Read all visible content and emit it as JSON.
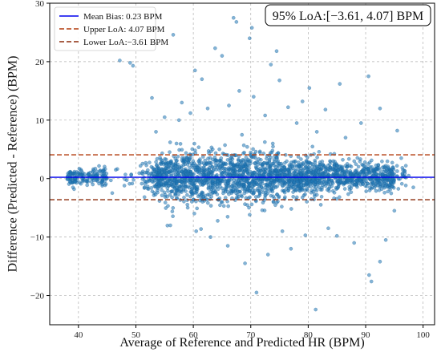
{
  "chart_data": {
    "type": "scatter",
    "title": "",
    "xlabel": "Average of Reference and Predicted HR (BPM)",
    "ylabel": "Difference (Predicted - Reference) (BPM)",
    "xlim": [
      35,
      102
    ],
    "ylim": [
      -25,
      30
    ],
    "xticks": [
      40,
      50,
      60,
      70,
      80,
      90,
      100
    ],
    "yticks": [
      -20,
      -10,
      0,
      10,
      20,
      30
    ],
    "grid": true,
    "legend_position": "upper-left",
    "annotation": "95% LoA:[−3.61, 4.07] BPM",
    "reference_lines": [
      {
        "name": "Mean Bias: 0.23 BPM",
        "value": 0.23,
        "style": "solid",
        "color": "#0000ee"
      },
      {
        "name": "Upper LoA: 4.07 BPM",
        "value": 4.07,
        "style": "dashed",
        "color": "#b23a0c"
      },
      {
        "name": "Lower LoA:−3.61 BPM",
        "value": -3.61,
        "style": "dashed",
        "color": "#8b2a0a"
      }
    ],
    "point_color": "#1f77b4",
    "outlier_points": [
      {
        "x": 67.0,
        "y": 27.5
      },
      {
        "x": 67.5,
        "y": 26.8
      },
      {
        "x": 70.2,
        "y": 25.8
      },
      {
        "x": 56.5,
        "y": 24.6
      },
      {
        "x": 69.8,
        "y": 24.0
      },
      {
        "x": 47.2,
        "y": 20.2
      },
      {
        "x": 49.0,
        "y": 19.8
      },
      {
        "x": 49.5,
        "y": 19.3
      },
      {
        "x": 63.8,
        "y": 22.3
      },
      {
        "x": 65.0,
        "y": 21.0
      },
      {
        "x": 73.5,
        "y": 19.5
      },
      {
        "x": 74.5,
        "y": 21.8
      },
      {
        "x": 60.3,
        "y": 18.5
      },
      {
        "x": 61.5,
        "y": 17.0
      },
      {
        "x": 75.0,
        "y": 16.8
      },
      {
        "x": 80.2,
        "y": 15.5
      },
      {
        "x": 85.5,
        "y": 16.2
      },
      {
        "x": 90.5,
        "y": 17.5
      },
      {
        "x": 79.0,
        "y": 13.2
      },
      {
        "x": 83.0,
        "y": 11.8
      },
      {
        "x": 89.2,
        "y": 9.5
      },
      {
        "x": 52.8,
        "y": 13.8
      },
      {
        "x": 58.0,
        "y": 13.0
      },
      {
        "x": 55.0,
        "y": 10.5
      },
      {
        "x": 92.5,
        "y": 12.0
      },
      {
        "x": 95.5,
        "y": 8.2
      },
      {
        "x": 96.2,
        "y": 3.5
      },
      {
        "x": 97.0,
        "y": 2.2
      },
      {
        "x": 98.3,
        "y": -1.5
      },
      {
        "x": 97.5,
        "y": 0.5
      },
      {
        "x": 53.5,
        "y": 8.0
      },
      {
        "x": 57.5,
        "y": 10.0
      },
      {
        "x": 62.5,
        "y": 12.0
      },
      {
        "x": 59.5,
        "y": 11.2
      },
      {
        "x": 68.0,
        "y": 15.0
      },
      {
        "x": 66.2,
        "y": 12.5
      },
      {
        "x": 70.5,
        "y": 14.0
      },
      {
        "x": 72.5,
        "y": 10.8
      },
      {
        "x": 76.5,
        "y": 12.2
      },
      {
        "x": 78.0,
        "y": 9.5
      },
      {
        "x": 81.5,
        "y": 8.0
      },
      {
        "x": 86.5,
        "y": 7.0
      },
      {
        "x": 69.0,
        "y": -14.5
      },
      {
        "x": 71.0,
        "y": -19.5
      },
      {
        "x": 81.3,
        "y": -22.4
      },
      {
        "x": 90.6,
        "y": -16.5
      },
      {
        "x": 91.0,
        "y": -17.6
      },
      {
        "x": 92.5,
        "y": -14.2
      },
      {
        "x": 73.0,
        "y": -13.0
      },
      {
        "x": 77.0,
        "y": -12.0
      },
      {
        "x": 85.0,
        "y": -9.8
      },
      {
        "x": 88.0,
        "y": -11.0
      },
      {
        "x": 93.5,
        "y": -10.5
      },
      {
        "x": 66.0,
        "y": -11.5
      },
      {
        "x": 60.5,
        "y": -9.0
      },
      {
        "x": 56.0,
        "y": -8.0
      },
      {
        "x": 63.0,
        "y": -10.0
      },
      {
        "x": 75.5,
        "y": -9.0
      },
      {
        "x": 79.5,
        "y": -9.7
      },
      {
        "x": 83.5,
        "y": -8.5
      },
      {
        "x": 95.0,
        "y": -5.5
      },
      {
        "x": 38.5,
        "y": -0.5
      },
      {
        "x": 40.0,
        "y": 1.0
      },
      {
        "x": 42.5,
        "y": -1.0
      },
      {
        "x": 44.5,
        "y": 0.3
      },
      {
        "x": 46.5,
        "y": 1.5
      },
      {
        "x": 48.0,
        "y": -1.2
      }
    ]
  }
}
